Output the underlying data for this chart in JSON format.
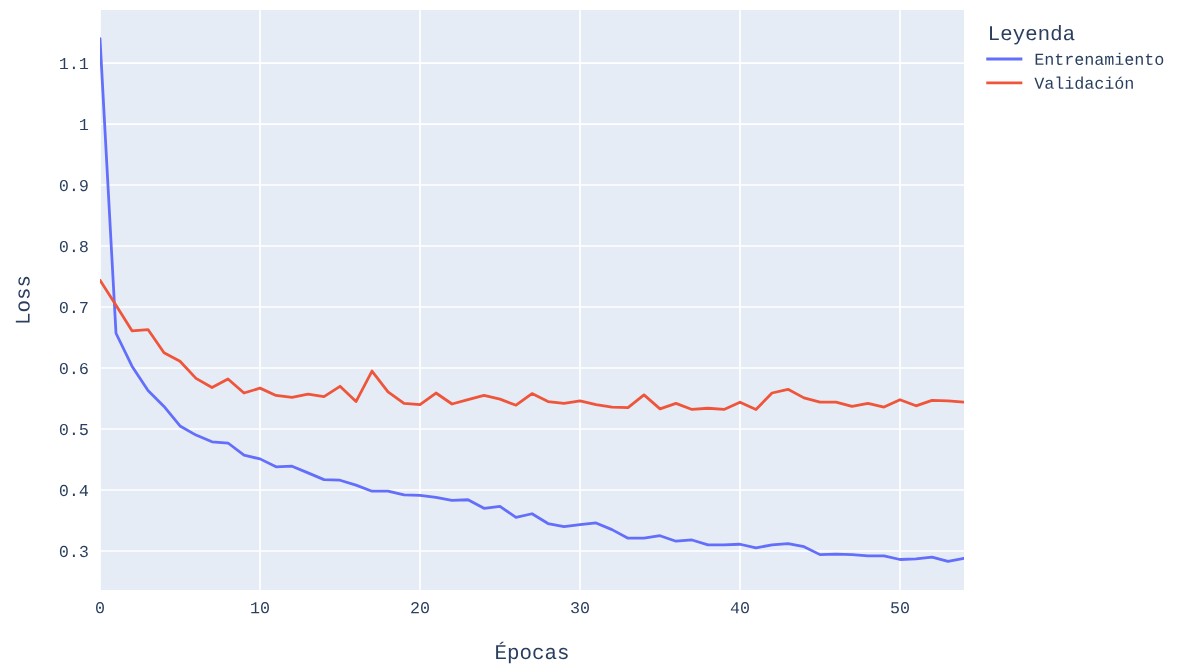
{
  "chart_data": {
    "type": "line",
    "xlabel": "Épocas",
    "ylabel": "Loss",
    "legend_title": "Leyenda",
    "legend": "right",
    "grid": true,
    "x": [
      0,
      1,
      2,
      3,
      4,
      5,
      6,
      7,
      8,
      9,
      10,
      11,
      12,
      13,
      14,
      15,
      16,
      17,
      18,
      19,
      20,
      21,
      22,
      23,
      24,
      25,
      26,
      27,
      28,
      29,
      30,
      31,
      32,
      33,
      34,
      35,
      36,
      37,
      38,
      39,
      40,
      41,
      42,
      43,
      44,
      45,
      46,
      47,
      48,
      49,
      50,
      51,
      52,
      53,
      54
    ],
    "xlim": [
      0,
      54
    ],
    "xticks": [
      0,
      10,
      20,
      30,
      40,
      50
    ],
    "ylim": [
      0.236,
      1.187
    ],
    "yticks": [
      0.3,
      0.4,
      0.5,
      0.6,
      0.7,
      0.8,
      0.9,
      1,
      1.1
    ],
    "series": [
      {
        "name": "Entrenamiento",
        "color": "#636efa",
        "values": [
          1.14,
          0.657,
          0.603,
          0.563,
          0.537,
          0.505,
          0.49,
          0.479,
          0.477,
          0.457,
          0.451,
          0.438,
          0.439,
          0.428,
          0.417,
          0.416,
          0.408,
          0.398,
          0.398,
          0.392,
          0.391,
          0.388,
          0.383,
          0.384,
          0.37,
          0.373,
          0.355,
          0.361,
          0.345,
          0.34,
          0.343,
          0.346,
          0.335,
          0.321,
          0.321,
          0.325,
          0.316,
          0.318,
          0.31,
          0.31,
          0.311,
          0.305,
          0.31,
          0.312,
          0.307,
          0.294,
          0.295,
          0.294,
          0.292,
          0.292,
          0.286,
          0.287,
          0.29,
          0.283,
          0.288
        ]
      },
      {
        "name": "Validación",
        "color": "#ef553b",
        "values": [
          0.744,
          0.703,
          0.661,
          0.663,
          0.625,
          0.611,
          0.583,
          0.568,
          0.582,
          0.559,
          0.567,
          0.555,
          0.552,
          0.557,
          0.553,
          0.57,
          0.545,
          0.595,
          0.561,
          0.542,
          0.54,
          0.559,
          0.541,
          0.548,
          0.555,
          0.549,
          0.539,
          0.558,
          0.545,
          0.542,
          0.546,
          0.54,
          0.536,
          0.535,
          0.556,
          0.533,
          0.542,
          0.532,
          0.534,
          0.532,
          0.544,
          0.532,
          0.559,
          0.565,
          0.551,
          0.544,
          0.544,
          0.537,
          0.542,
          0.536,
          0.548,
          0.538,
          0.547,
          0.546,
          0.544
        ]
      }
    ]
  }
}
